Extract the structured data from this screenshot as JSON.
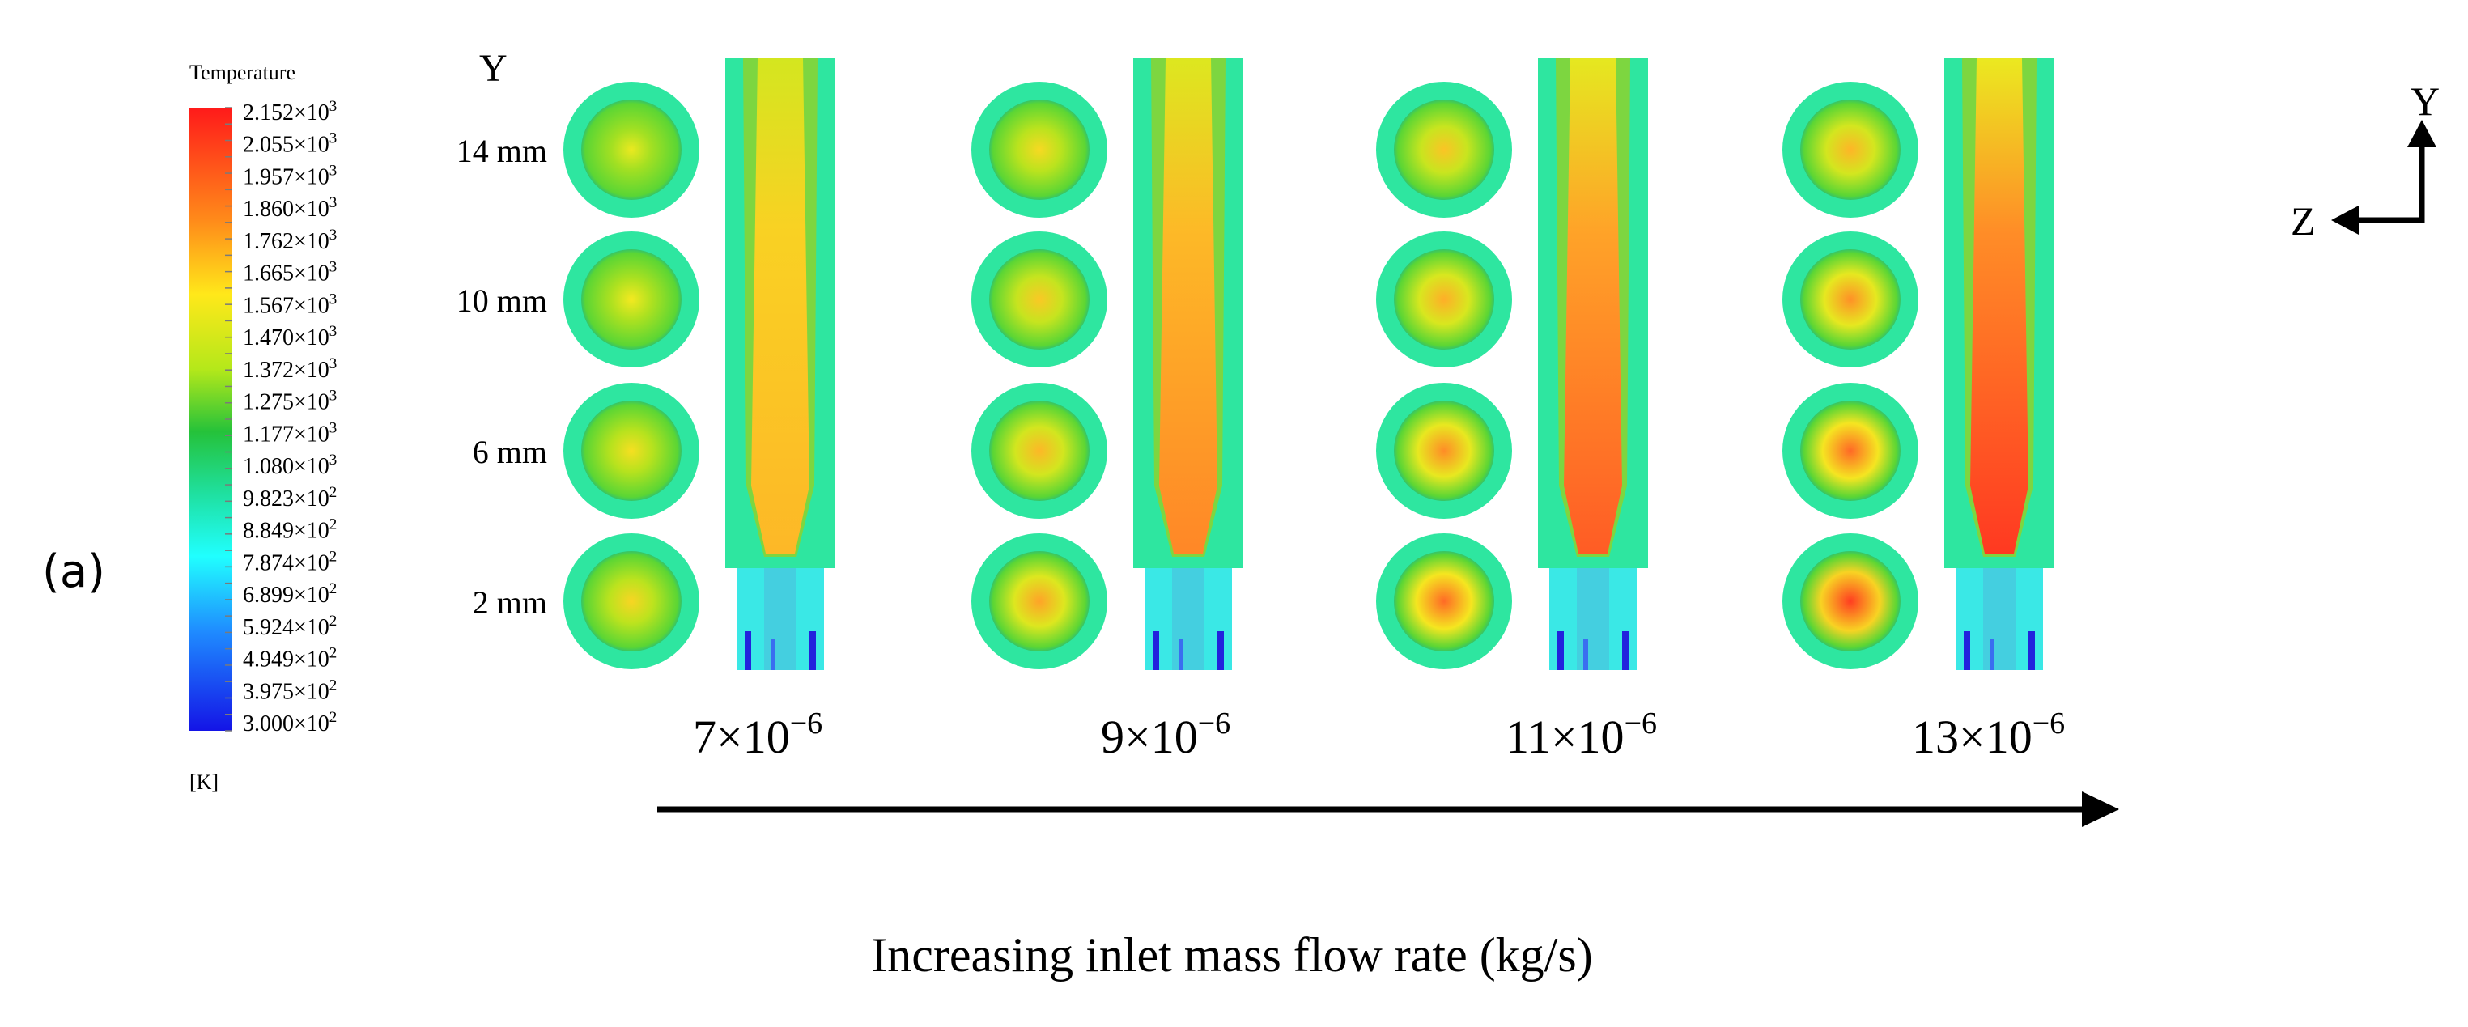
{
  "panel_label": "(a)",
  "legend": {
    "title": "Temperature",
    "unit": "[K]",
    "ticks": [
      {
        "mant": "2.152",
        "exp": "3"
      },
      {
        "mant": "2.055",
        "exp": "3"
      },
      {
        "mant": "1.957",
        "exp": "3"
      },
      {
        "mant": "1.860",
        "exp": "3"
      },
      {
        "mant": "1.762",
        "exp": "3"
      },
      {
        "mant": "1.665",
        "exp": "3"
      },
      {
        "mant": "1.567",
        "exp": "3"
      },
      {
        "mant": "1.470",
        "exp": "3"
      },
      {
        "mant": "1.372",
        "exp": "3"
      },
      {
        "mant": "1.275",
        "exp": "3"
      },
      {
        "mant": "1.177",
        "exp": "3"
      },
      {
        "mant": "1.080",
        "exp": "3"
      },
      {
        "mant": "9.823",
        "exp": "2"
      },
      {
        "mant": "8.849",
        "exp": "2"
      },
      {
        "mant": "7.874",
        "exp": "2"
      },
      {
        "mant": "6.899",
        "exp": "2"
      },
      {
        "mant": "5.924",
        "exp": "2"
      },
      {
        "mant": "4.949",
        "exp": "2"
      },
      {
        "mant": "3.975",
        "exp": "2"
      },
      {
        "mant": "3.000",
        "exp": "2"
      }
    ]
  },
  "y_axis_title": "Y",
  "height_labels": [
    "14 mm",
    "10 mm",
    "6 mm",
    "2 mm"
  ],
  "cases": [
    {
      "mant": "7",
      "exp": "−6",
      "intensity": 0.35
    },
    {
      "mant": "9",
      "exp": "−6",
      "intensity": 0.6
    },
    {
      "mant": "11",
      "exp": "−6",
      "intensity": 0.8
    },
    {
      "mant": "13",
      "exp": "−6",
      "intensity": 0.95
    }
  ],
  "axis_caption": "Increasing inlet mass flow rate (kg/s)",
  "triad": {
    "y_label": "Y",
    "z_label": "Z"
  }
}
